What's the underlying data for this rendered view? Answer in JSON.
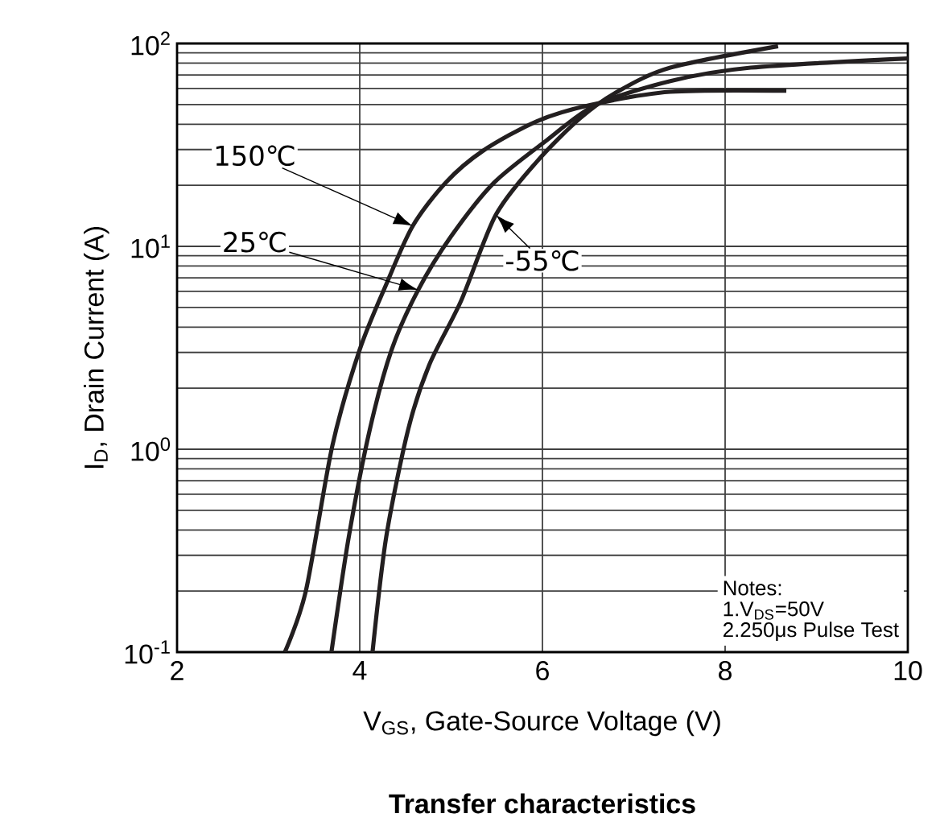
{
  "chart_data": {
    "type": "line",
    "title": "**Transfer characteristics**",
    "xlabel": "V$_{GS}$, Gate-Source Voltage (V)",
    "ylabel": "I$_{D}$, Drain Current (A)",
    "xlim": [
      2,
      10
    ],
    "xticks": [
      2,
      4,
      6,
      8,
      10
    ],
    "ylim": [
      0.1,
      100
    ],
    "yticks": [
      {
        "value": 0.1,
        "label": "10$^{-1}$"
      },
      {
        "value": 1,
        "label": "10$^{0}$"
      },
      {
        "value": 10,
        "label": "10$^{1}$"
      },
      {
        "value": 100,
        "label": "10$^{2}$"
      }
    ],
    "log": "y",
    "grid": true,
    "line_style": "solid",
    "series": [
      {
        "name": "150℃",
        "color": "#231f20",
        "x": [
          3.18,
          3.41,
          3.7,
          4.0,
          4.29,
          4.58,
          4.94,
          5.35,
          5.94,
          6.52,
          7.4,
          8.67
        ],
        "values": [
          0.1,
          0.2,
          1.04,
          3.1,
          6.5,
          12.6,
          20.6,
          29.6,
          41.4,
          49.7,
          57.8,
          58.5
        ]
      },
      {
        "name": "25℃",
        "color": "#231f20",
        "x": [
          3.69,
          3.88,
          4.11,
          4.35,
          4.64,
          5.0,
          5.47,
          6.05,
          6.58,
          7.4,
          8.28,
          10
        ],
        "values": [
          0.1,
          0.37,
          1.25,
          3.1,
          6.1,
          11.2,
          20.6,
          33.4,
          49.7,
          65.3,
          76,
          84.4
        ]
      },
      {
        "name": "-55℃",
        "color": "#231f20",
        "x": [
          4.14,
          4.29,
          4.53,
          4.76,
          5.11,
          5.49,
          5.94,
          6.41,
          6.82,
          7.4,
          8.58
        ],
        "values": [
          0.1,
          0.37,
          1.25,
          2.6,
          5.4,
          14.3,
          26.2,
          42.7,
          57.8,
          76,
          97
        ]
      }
    ],
    "annotations": [
      "Notes:",
      "1.V$_{DS}$=50V",
      "2.250μs  Pulse Test"
    ]
  }
}
